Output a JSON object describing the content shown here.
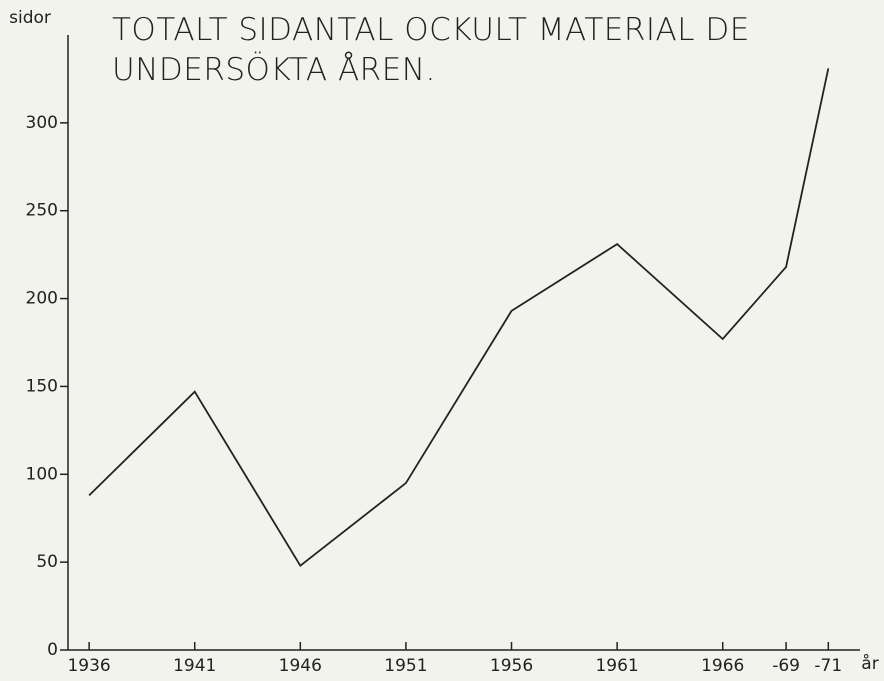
{
  "chart_data": {
    "type": "line",
    "title": "TOTALT SIDANTAL OCKULT MATERIAL DE UNDERSÖKTA ÅREN.",
    "y_label": "sidor",
    "x_label": "år",
    "x": [
      1936,
      1941,
      1946,
      1951,
      1956,
      1961,
      1966,
      1969,
      1971
    ],
    "series": [
      {
        "name": "sidor",
        "color": "#222222",
        "values": [
          88,
          147,
          48,
          95,
          193,
          231,
          177,
          218,
          331
        ]
      }
    ],
    "xlim": [
      1935,
      1972.5
    ],
    "ylim": [
      0,
      350
    ],
    "xticks": [
      1936,
      1941,
      1946,
      1951,
      1956,
      1961,
      1966,
      {
        "value": 1969,
        "label": "-69"
      },
      {
        "value": 1971,
        "label": "-71"
      }
    ],
    "yticks": [
      0,
      50,
      100,
      150,
      200,
      250,
      300
    ],
    "grid": false
  }
}
